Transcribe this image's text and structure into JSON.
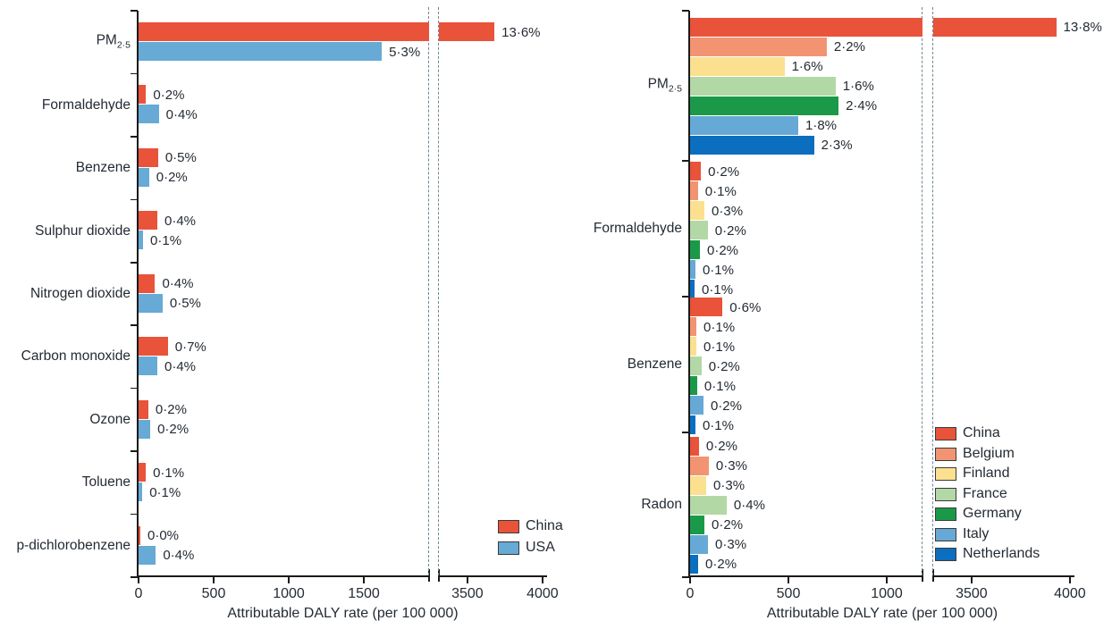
{
  "figure": {
    "background": "#ffffff",
    "text_color": "#242b33",
    "axis_color": "#1a1a1a",
    "break_line_color": "#6f8794"
  },
  "chart_data": [
    {
      "type": "bar",
      "orientation": "horizontal",
      "panel": "left",
      "xlabel": "Attributable DALY rate (per 100 000)",
      "xlim": [
        0,
        4000
      ],
      "x_ticks": [
        0,
        500,
        1000,
        1500,
        3500,
        4000
      ],
      "axis_break": {
        "from": 1900,
        "to": 3310
      },
      "grid": false,
      "legend_position": "bottom-right-inside",
      "categories": [
        {
          "text": "PM",
          "sub": "2·5"
        },
        {
          "text": "Formaldehyde"
        },
        {
          "text": "Benzene"
        },
        {
          "text": "Sulphur dioxide"
        },
        {
          "text": "Nitrogen dioxide"
        },
        {
          "text": "Carbon monoxide"
        },
        {
          "text": "Ozone"
        },
        {
          "text": "Toluene"
        },
        {
          "text": "p-dichlorobenzene"
        }
      ],
      "series": [
        {
          "name": "China",
          "color": "#e8533a",
          "values": [
            3680,
            50,
            130,
            125,
            110,
            195,
            65,
            48,
            10
          ],
          "labels": [
            "13·6%",
            "0·2%",
            "0·5%",
            "0·4%",
            "0·4%",
            "0·7%",
            "0·2%",
            "0·1%",
            "0·0%"
          ]
        },
        {
          "name": "USA",
          "color": "#66aad5",
          "values": [
            1620,
            135,
            70,
            30,
            160,
            125,
            78,
            25,
            115
          ],
          "labels": [
            "5·3%",
            "0·4%",
            "0·2%",
            "0·1%",
            "0·5%",
            "0·4%",
            "0·2%",
            "0·1%",
            "0·4%"
          ]
        }
      ]
    },
    {
      "type": "bar",
      "orientation": "horizontal",
      "panel": "right",
      "xlabel": "Attributable DALY rate (per 100 000)",
      "xlim": [
        0,
        4000
      ],
      "x_ticks": [
        0,
        500,
        1000,
        3500,
        4000
      ],
      "axis_break": {
        "from": 1180,
        "to": 3305
      },
      "grid": false,
      "legend_position": "right-inside",
      "categories": [
        {
          "text": "PM",
          "sub": "2·5"
        },
        {
          "text": "Formaldehyde"
        },
        {
          "text": "Benzene"
        },
        {
          "text": "Radon"
        }
      ],
      "series": [
        {
          "name": "China",
          "color": "#e8533a",
          "values": [
            3930,
            55,
            165,
            45
          ],
          "labels": [
            "13·8%",
            "0·2%",
            "0·6%",
            "0·2%"
          ]
        },
        {
          "name": "Belgium",
          "color": "#f29472",
          "values": [
            695,
            40,
            32,
            95
          ],
          "labels": [
            "2·2%",
            "0·1%",
            "0·1%",
            "0·3%"
          ]
        },
        {
          "name": "Finland",
          "color": "#fbe08f",
          "values": [
            480,
            73,
            32,
            82
          ],
          "labels": [
            "1·6%",
            "0·3%",
            "0·1%",
            "0·3%"
          ]
        },
        {
          "name": "France",
          "color": "#b2d8a6",
          "values": [
            740,
            90,
            58,
            186
          ],
          "labels": [
            "1·6%",
            "0·2%",
            "0·2%",
            "0·4%"
          ]
        },
        {
          "name": "Germany",
          "color": "#1a9a48",
          "values": [
            755,
            50,
            36,
            73
          ],
          "labels": [
            "2·4%",
            "0·2%",
            "0·1%",
            "0·2%"
          ]
        },
        {
          "name": "Italy",
          "color": "#66a9d6",
          "values": [
            550,
            27,
            68,
            91
          ],
          "labels": [
            "1·8%",
            "0·1%",
            "0·2%",
            "0·3%"
          ]
        },
        {
          "name": "Netherlands",
          "color": "#0c6ebe",
          "values": [
            630,
            23,
            27,
            41
          ],
          "labels": [
            "2·3%",
            "0·1%",
            "0·1%",
            "0·2%"
          ]
        }
      ]
    }
  ]
}
